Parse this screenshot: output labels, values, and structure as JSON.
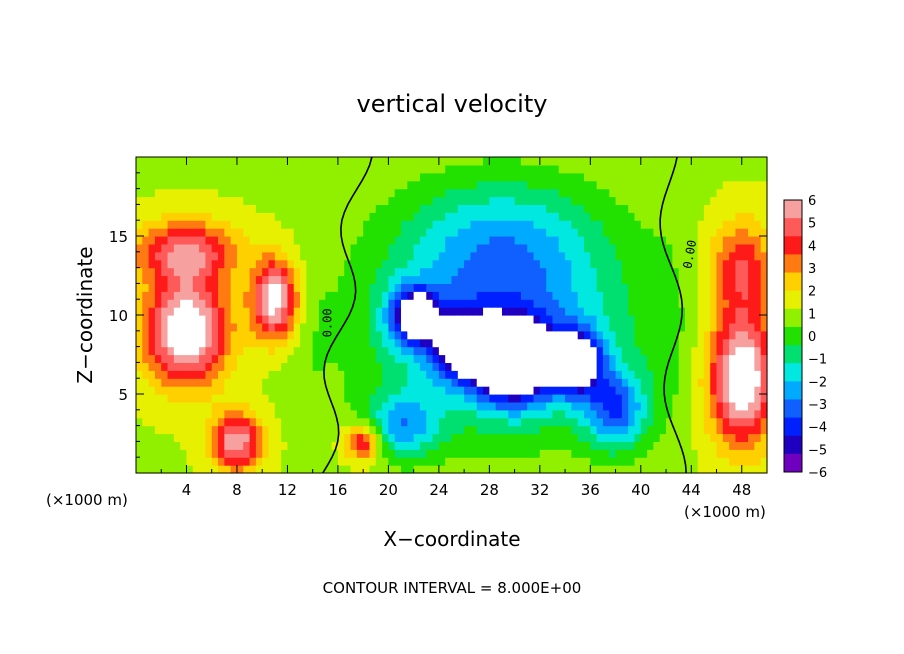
{
  "chart_data": {
    "type": "heatmap",
    "title": "vertical velocity",
    "xlabel": "X−coordinate",
    "ylabel": "Z−coordinate",
    "x_unit_left": "(×1000 m)",
    "x_unit_right": "(×1000 m)",
    "xlim": [
      0,
      50
    ],
    "ylim": [
      0,
      20
    ],
    "x_ticks": [
      4,
      8,
      12,
      16,
      20,
      24,
      28,
      32,
      36,
      40,
      44,
      48
    ],
    "x_tick_labels": [
      "4",
      "8",
      "12",
      "16",
      "20",
      "24",
      "28",
      "32",
      "36",
      "40",
      "44",
      "48"
    ],
    "y_ticks": [
      5,
      10,
      15
    ],
    "y_tick_labels": [
      "5",
      "10",
      "15"
    ],
    "colorbar": {
      "levels": [
        6,
        5,
        4,
        3,
        2,
        1,
        0,
        -1,
        -2,
        -3,
        -4,
        -5,
        -6
      ],
      "labels": [
        "6",
        "5",
        "4",
        "3",
        "2",
        "1",
        "0",
        "−1",
        "−2",
        "−3",
        "−4",
        "−5",
        "−6"
      ],
      "colors": [
        "#f7a0a0",
        "#ff5a5a",
        "#ff1a1a",
        "#ff7a10",
        "#ffd000",
        "#e6f000",
        "#90f000",
        "#22e000",
        "#00e070",
        "#00e8e0",
        "#00aaff",
        "#1060ff",
        "#0020ff",
        "#2000c0",
        "#7000c0"
      ]
    },
    "contour_label": "0.00",
    "footer": "CONTOUR INTERVAL = 8.000E+00",
    "features": [
      {
        "x": 4,
        "z": 9,
        "value": 8,
        "sx": 3.2,
        "sz": 3.2
      },
      {
        "x": 11,
        "z": 11,
        "value": 7,
        "sx": 1.8,
        "sz": 2.5
      },
      {
        "x": 8,
        "z": 2,
        "value": 6,
        "sx": 2.0,
        "sz": 1.8
      },
      {
        "x": 4,
        "z": 14,
        "value": 5,
        "sx": 4.0,
        "sz": 2.0
      },
      {
        "x": 18,
        "z": 2,
        "value": 5,
        "sx": 1.5,
        "sz": 1.2
      },
      {
        "x": 48,
        "z": 6,
        "value": 8,
        "sx": 2.5,
        "sz": 4.0
      },
      {
        "x": 48,
        "z": 13,
        "value": 4,
        "sx": 2.5,
        "sz": 3.0
      },
      {
        "x": 22,
        "z": 10,
        "value": -7,
        "sx": 2.0,
        "sz": 1.8
      },
      {
        "x": 30,
        "z": 7,
        "value": -9,
        "sx": 3.0,
        "sz": 2.5
      },
      {
        "x": 35,
        "z": 7,
        "value": -7,
        "sx": 2.0,
        "sz": 2.0
      },
      {
        "x": 26,
        "z": 8,
        "value": -6,
        "sx": 2.5,
        "sz": 2.0
      },
      {
        "x": 29,
        "z": 9,
        "value": -5,
        "sx": 10,
        "sz": 6.0
      },
      {
        "x": 29,
        "z": 15,
        "value": -3,
        "sx": 8.0,
        "sz": 4.0
      },
      {
        "x": 38,
        "z": 4,
        "value": -5,
        "sx": 2.5,
        "sz": 2.5
      },
      {
        "x": 21,
        "z": 3,
        "value": -4,
        "sx": 3.0,
        "sz": 2.0
      },
      {
        "x": 14,
        "z": 9,
        "value": -0.5,
        "sx": 1.5,
        "sz": 6.0
      },
      {
        "x": 42,
        "z": 9,
        "value": -0.6,
        "sx": 1.8,
        "sz": 7.0
      }
    ]
  }
}
